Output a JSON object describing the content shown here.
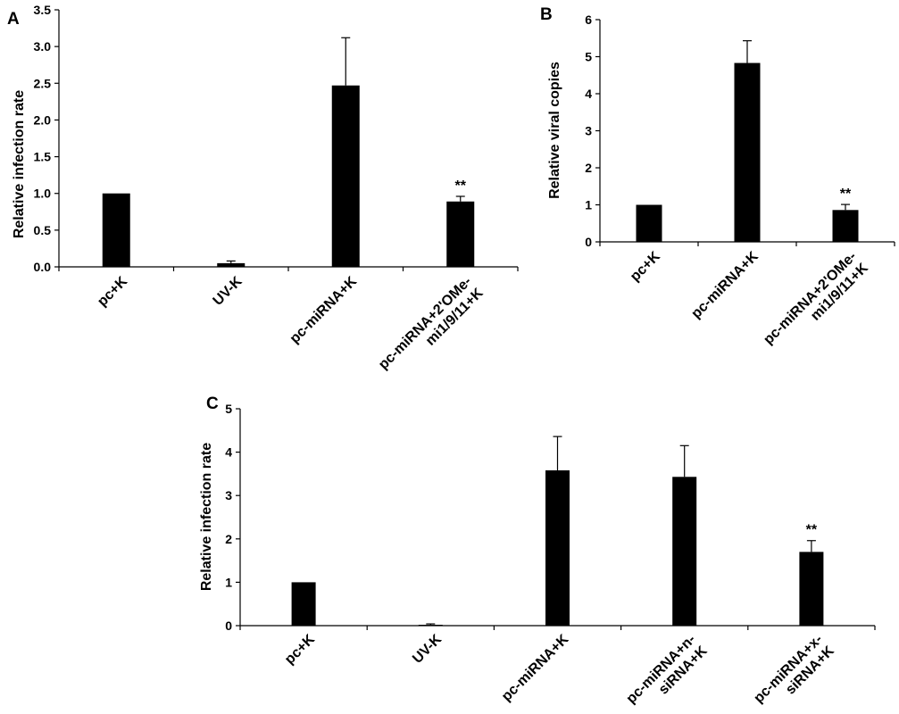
{
  "chart_data": [
    {
      "panel": "A",
      "type": "bar",
      "ylabel": "Relative infection rate",
      "xlabel": "",
      "ylim": [
        0,
        3.5
      ],
      "yticks": [
        "0.0",
        "0.5",
        "1.0",
        "1.5",
        "2.0",
        "2.5",
        "3.0",
        "3.5"
      ],
      "categories": [
        [
          "pc+K"
        ],
        [
          "UV-K"
        ],
        [
          "pc-miRNA+K"
        ],
        [
          "pc-miRNA+2'OMe-",
          "mi1/9/11+K"
        ]
      ],
      "values": [
        1.0,
        0.05,
        2.47,
        0.89
      ],
      "errors": [
        0,
        0.03,
        0.65,
        0.07
      ],
      "annotations": [
        "",
        "",
        "",
        "**"
      ],
      "bar_color": "#000000"
    },
    {
      "panel": "B",
      "type": "bar",
      "ylabel": "Relative viral copies",
      "xlabel": "",
      "ylim": [
        0,
        6
      ],
      "yticks": [
        "0",
        "1",
        "2",
        "3",
        "4",
        "5",
        "6"
      ],
      "categories": [
        [
          "pc+K"
        ],
        [
          "pc-miRNA+K"
        ],
        [
          "pc-miRNA+2'OMe-",
          "mi1/9/11+K"
        ]
      ],
      "values": [
        1.0,
        4.83,
        0.86
      ],
      "errors": [
        0,
        0.6,
        0.15
      ],
      "annotations": [
        "",
        "",
        "**"
      ],
      "bar_color": "#000000"
    },
    {
      "panel": "C",
      "type": "bar",
      "ylabel": "Relative infection rate",
      "xlabel": "",
      "ylim": [
        0,
        5
      ],
      "yticks": [
        "0",
        "1",
        "2",
        "3",
        "4",
        "5"
      ],
      "categories": [
        [
          "pc+K"
        ],
        [
          "UV-K"
        ],
        [
          "pc-miRNA+K"
        ],
        [
          "pc-miRNA+n-",
          "siRNA+K"
        ],
        [
          "pc-miRNA+x-",
          "siRNA+K"
        ]
      ],
      "values": [
        1.0,
        0.02,
        3.58,
        3.43,
        1.7
      ],
      "errors": [
        0,
        0.02,
        0.78,
        0.72,
        0.26
      ],
      "annotations": [
        "",
        "",
        "",
        "",
        "**"
      ],
      "bar_color": "#000000"
    }
  ]
}
